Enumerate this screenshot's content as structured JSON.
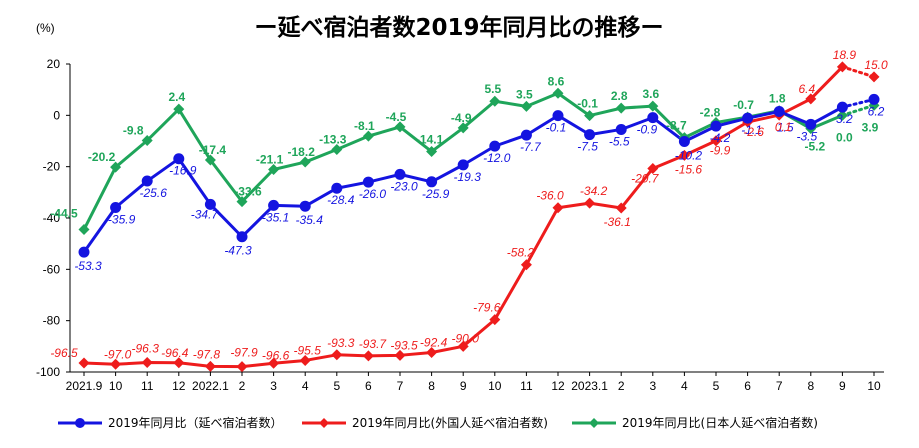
{
  "chart_data": {
    "type": "line",
    "title": "ー延べ宿泊者数2019年同月比の推移ー",
    "ylabel": "(%)",
    "ylim": [
      -100,
      20
    ],
    "yticks": [
      20,
      0,
      -20,
      -40,
      -60,
      -80,
      -100
    ],
    "categories": [
      "2021.9",
      "10",
      "11",
      "12",
      "2022.1",
      "2",
      "3",
      "4",
      "5",
      "6",
      "7",
      "8",
      "9",
      "10",
      "11",
      "12",
      "2023.1",
      "2",
      "3",
      "4",
      "5",
      "6",
      "7",
      "8",
      "9",
      "10"
    ],
    "series": [
      {
        "name": "2019年同月比（延べ宿泊者数）",
        "color": "#1414e0",
        "marker": "circle",
        "label_style": "italic",
        "values": [
          -53.3,
          -35.9,
          -25.6,
          -16.9,
          -34.7,
          -47.3,
          -35.1,
          -35.4,
          -28.4,
          -26.0,
          -23.0,
          -25.9,
          -19.3,
          -12.0,
          -7.7,
          -0.1,
          -7.5,
          -5.5,
          -0.9,
          -10.2,
          -4.2,
          -1.1,
          1.5,
          -3.5,
          3.2,
          6.2
        ],
        "labels": [
          "-53.3",
          "-35.9",
          "-25.6",
          "-16.9",
          "-34.7",
          "-47.3",
          "-35.1",
          "-35.4",
          "-28.4",
          "-26.0",
          "-23.0",
          "-25.9",
          "-19.3",
          "-12.0",
          "-7.7",
          "-0.1",
          "-7.5",
          "-5.5",
          "-0.9",
          "-10.2",
          "-4.2",
          "-1.1",
          "1.5",
          "-3.5",
          "3.2",
          "6.2"
        ]
      },
      {
        "name": "2019年同月比(外国人延べ宿泊者数)",
        "color": "#ee1c1c",
        "marker": "diamond",
        "label_style": "italic",
        "values": [
          -96.5,
          -97.0,
          -96.3,
          -96.4,
          -97.8,
          -97.9,
          -96.6,
          -95.5,
          -93.3,
          -93.7,
          -93.5,
          -92.4,
          -90.0,
          -79.6,
          -58.2,
          -36.0,
          -34.2,
          -36.1,
          -20.7,
          -15.6,
          -9.9,
          -2.6,
          0.1,
          6.4,
          18.9,
          15.0
        ],
        "labels": [
          "-96.5",
          "-97.0",
          "-96.3",
          "-96.4",
          "-97.8",
          "-97.9",
          "-96.6",
          "-95.5",
          "-93.3",
          "-93.7",
          "-93.5",
          "-92.4",
          "-90.0",
          "-79.6",
          "-58.2",
          "-36.0",
          "-34.2",
          "-36.1",
          "-20.7",
          "-15.6",
          "-9.9",
          "-2.6",
          "0.1",
          "6.4",
          "18.9",
          "15.0"
        ]
      },
      {
        "name": "2019年同月比(日本人延べ宿泊者数)",
        "color": "#1fa55a",
        "marker": "diamond",
        "label_style": "bold",
        "values": [
          -44.5,
          -20.2,
          -9.8,
          2.4,
          -17.4,
          -33.6,
          -21.1,
          -18.2,
          -13.3,
          -8.1,
          -4.5,
          -14.1,
          -4.9,
          5.5,
          3.5,
          8.6,
          -0.1,
          2.8,
          3.6,
          -8.7,
          -2.8,
          -0.7,
          1.8,
          -5.2,
          0.0,
          3.9
        ],
        "labels": [
          "-44.5",
          "-20.2",
          "-9.8",
          "2.4",
          "-17.4",
          "-33.6",
          "-21.1",
          "-18.2",
          "-13.3",
          "-8.1",
          "-4.5",
          "-14.1",
          "-4.9",
          "5.5",
          "3.5",
          "8.6",
          "-0.1",
          "2.8",
          "3.6",
          "-8.7",
          "-2.8",
          "-0.7",
          "1.8",
          "-5.2",
          "0.0",
          "3.9"
        ]
      }
    ],
    "dotted_last_segment": true,
    "legend_position": "bottom",
    "grid": false
  }
}
